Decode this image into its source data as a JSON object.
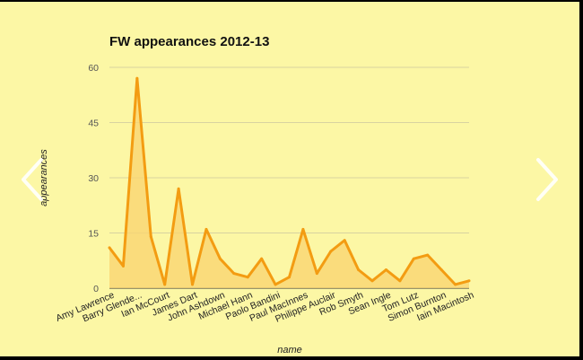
{
  "colors": {
    "background": "#fcf7a5",
    "line": "#f39c12",
    "area": "#f9d572",
    "grid": "#d8d3a0",
    "arrow": "#ffffff"
  },
  "nav": {
    "prev_icon": "chevron-left-icon",
    "next_icon": "chevron-right-icon"
  },
  "chart_data": {
    "type": "area",
    "title": "FW appearances 2012-13",
    "xlabel": "name",
    "ylabel": "appearances",
    "ylim": [
      0,
      60
    ],
    "yticks": [
      0,
      15,
      30,
      45,
      60
    ],
    "grid": true,
    "legend": "none",
    "tick_labels": [
      "Amy Lawrence",
      "Barry Glende...",
      "Ian McCourt",
      "James Dart",
      "John Ashdown",
      "Michael Hann",
      "Paolo Bandini",
      "Paul MacInnes",
      "Philippe Auclair",
      "Rob Smyth",
      "Sean Ingle",
      "Tom Lutz",
      "Simon Burnton",
      "Iain Macintosh"
    ],
    "tick_positions": [
      0,
      2,
      4,
      6,
      8,
      10,
      12,
      14,
      16,
      18,
      20,
      22,
      24,
      26
    ],
    "values": [
      11,
      6,
      57,
      14,
      1,
      27,
      1,
      16,
      8,
      4,
      3,
      8,
      1,
      3,
      16,
      4,
      10,
      13,
      5,
      2,
      5,
      2,
      8,
      9,
      5,
      1,
      2
    ]
  }
}
